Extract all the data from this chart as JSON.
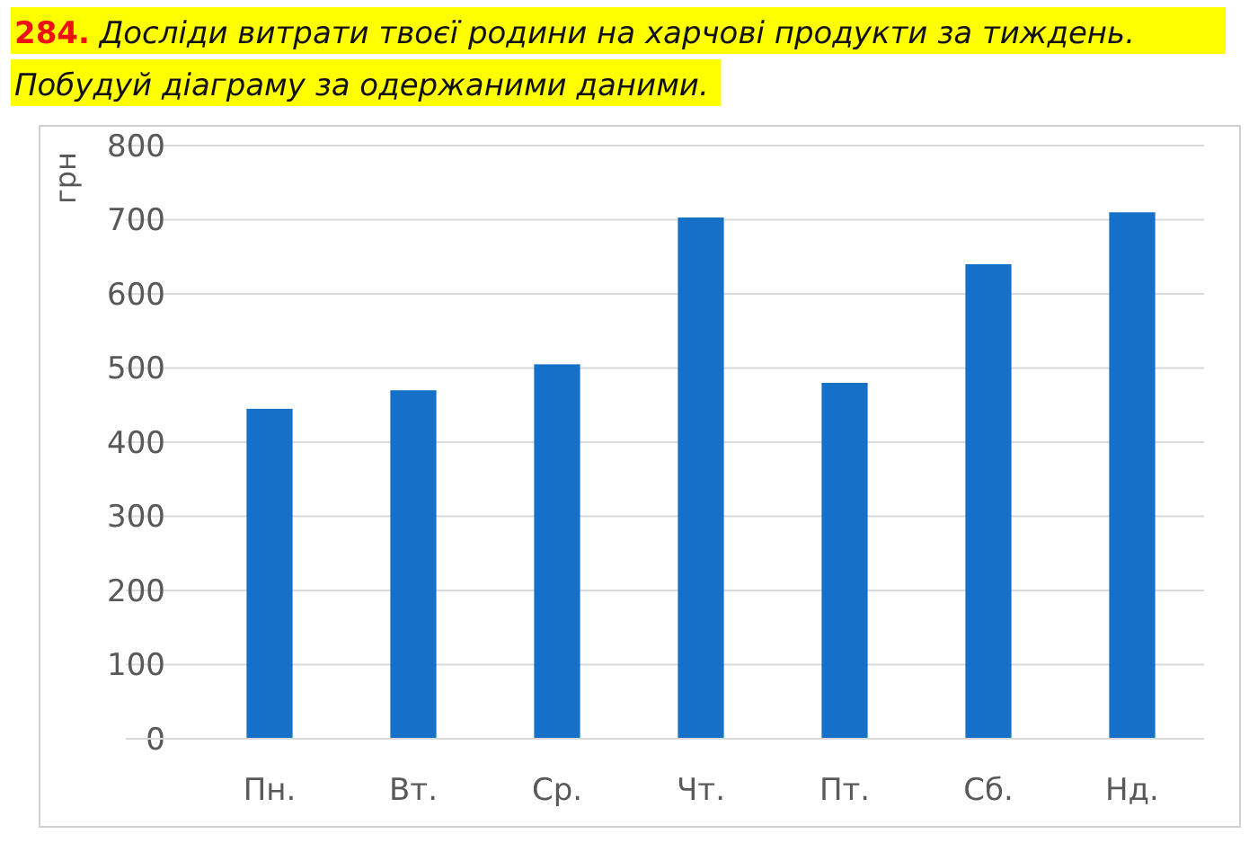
{
  "chart_data": {
    "type": "bar",
    "title": "284. Досліди витрати твоєї родини на харчові продукти за тиждень.\nПобудуй діаграму за одержаними даними.",
    "ylabel": "грн",
    "categories": [
      "Пн.",
      "Вт.",
      "Ср.",
      "Чт.",
      "Пт.",
      "Сб.",
      "Нд."
    ],
    "values": [
      445,
      470,
      505,
      703,
      480,
      640,
      710
    ],
    "color": "#1570c8",
    "ylim": [
      0,
      800
    ],
    "yticks": [
      0,
      100,
      200,
      300,
      400,
      500,
      600,
      700,
      800
    ],
    "grid": "y"
  }
}
